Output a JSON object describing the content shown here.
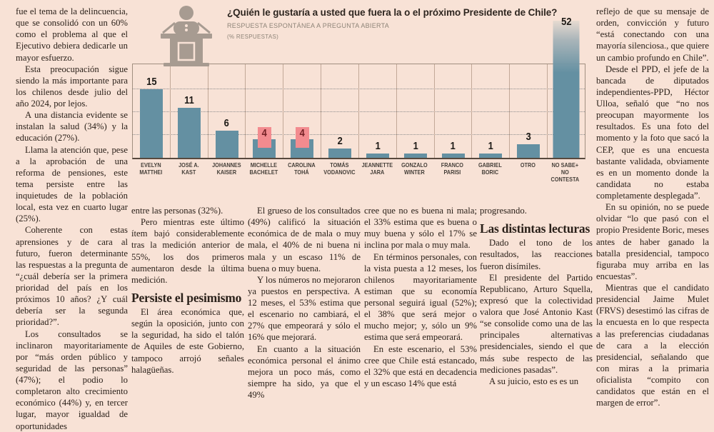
{
  "page": {
    "background_color": "#f8e2d6",
    "text_color": "#2b211a"
  },
  "chart_data": {
    "type": "bar",
    "title": "¿Quién le gustaría a usted que fuera la o el próximo Presidente de Chile?",
    "subtitle": "RESPUESTA ESPONTÁNEA A PREGUNTA ABIERTA",
    "unit_label": "(% RESPUESTAS)",
    "categories": [
      "EVELYN MATTHEI",
      "JOSÉ A. KAST",
      "JOHANNES KAISER",
      "MICHELLE BACHELET",
      "CAROLINA TOHÁ",
      "TOMÁS VODANOVIC",
      "JEANNETTE JARA",
      "GONZALO WINTER",
      "FRANCO PARISI",
      "GABRIEL BORIC",
      "OTRO",
      "NO SABE+ NO CONTESTA"
    ],
    "values": [
      15,
      11,
      6,
      4,
      4,
      2,
      1,
      1,
      1,
      1,
      3,
      52
    ],
    "label_lines": [
      [
        "EVELYN",
        "MATTHEI"
      ],
      [
        "JOSÉ A.",
        "KAST"
      ],
      [
        "JOHANNES",
        "KAISER"
      ],
      [
        "MICHELLE",
        "BACHELET"
      ],
      [
        "CAROLINA",
        "TOHÁ"
      ],
      [
        "TOMÁS",
        "VODANOVIC"
      ],
      [
        "JEANNETTE",
        "JARA"
      ],
      [
        "GONZALO",
        "WINTER"
      ],
      [
        "FRANCO",
        "PARISI"
      ],
      [
        "GABRIEL",
        "BORIC"
      ],
      [
        "OTRO"
      ],
      [
        "NO SABE+",
        "NO CONTESTA"
      ]
    ],
    "highlighted_indices": [
      3,
      4
    ],
    "overflow_index": 11,
    "ylim": [
      0,
      20
    ],
    "gridlines": [
      5,
      10,
      15
    ],
    "grid_on": true,
    "legend": "none",
    "bar_color": "#6490a2",
    "highlight_box_color": "#f28b8f",
    "highlight_text_color": "#742125"
  },
  "article": {
    "columns": [
      {
        "blocks": [
          {
            "type": "p",
            "noindent": true,
            "text": "fue el tema de la delincuencia, que se consolidó con un 60% como el problema al que el Ejecutivo debiera dedicarle un mayor esfuerzo."
          },
          {
            "type": "p",
            "text": "Esta preocupación sigue siendo la más importante para los chilenos desde julio del año 2024, por lejos."
          },
          {
            "type": "p",
            "text": "A una distancia evidente se instalan la salud (34%) y la educación (27%)."
          },
          {
            "type": "p",
            "text": "Llama la atención que, pese a la aprobación de una reforma de pensiones, este tema persiste entre las inquietudes de la población local, esta vez en cuarto lugar (25%)."
          },
          {
            "type": "p",
            "text": "Coherente con estas aprensiones y de cara al futuro, fueron determinante las respuestas a la pregunta de “¿cuál debería ser la primera prioridad del país en los próximos 10 años? ¿Y cuál debería ser la segunda prioridad?”."
          },
          {
            "type": "p",
            "text": "Los consultados se inclinaron mayoritariamente por “más orden público y seguridad de las personas” (47%); el podio lo completaron alto crecimiento económico (44%) y, en tercer lugar, mayor igualdad de oportunidades"
          }
        ]
      },
      {
        "blocks": [
          {
            "type": "p",
            "noindent": true,
            "text": "entre las personas (32%)."
          },
          {
            "type": "p",
            "text": "Pero mientras este último ítem bajó considerablemente tras la medición anterior de 55%, los dos primeros aumentaron desde la última medición."
          },
          {
            "type": "h",
            "text": "Persiste el pesimismo"
          },
          {
            "type": "p",
            "text": "El área económica que, según la oposición, junto con la seguridad, ha sido el talón de Aquiles de este Gobierno, tampoco arrojó señales halagüeñas."
          }
        ]
      },
      {
        "blocks": [
          {
            "type": "p",
            "text": "El grueso de los consultados (49%) calificó la situación económica de de mala o muy mala, el 40% de ni buena ni mala y un escaso 11% de buena o muy buena."
          },
          {
            "type": "p",
            "text": "Y los números no mejoraron ya puestos en perspectiva. A 12 meses, el 53% estima que el escenario no cambiará, el 27% que empeorará y sólo el 16% que mejorará."
          },
          {
            "type": "p",
            "text": "En cuanto a la situación económica personal el ánimo mejora un poco más, como siempre ha sido, ya que el 49%"
          }
        ]
      },
      {
        "blocks": [
          {
            "type": "p",
            "noindent": true,
            "text": "cree que no es buena ni mala; el 33% estima que es buena o muy buena y sólo el 17% se inclina por mala o muy mala."
          },
          {
            "type": "p",
            "text": "En términos personales, con la vista puesta a 12 meses, los chilenos mayoritariamente estiman que su economía personal seguirá igual (52%); el 38% que será mejor o mucho mejor; y, sólo un 9% estima que será empeorará."
          },
          {
            "type": "p",
            "text": "En este escenario, el 53% cree que Chile está estancado, el 32% que está en decadencia y un escaso 14% que está"
          }
        ]
      },
      {
        "blocks": [
          {
            "type": "p",
            "noindent": true,
            "text": "progresando."
          },
          {
            "type": "h",
            "text": "Las distintas lecturas"
          },
          {
            "type": "p",
            "text": "Dado el tono de los resultados, las reacciones fueron disímiles."
          },
          {
            "type": "p",
            "text": "El presidente del Partido Republicano, Arturo Squella, expresó que la colectividad valora que José Antonio Kast “se consolide como una de las principales alternativas presidenciales, siendo el que más sube respecto de las mediciones pasadas”."
          },
          {
            "type": "p",
            "text": "A su juicio, esto es es un"
          }
        ]
      },
      {
        "blocks": [
          {
            "type": "p",
            "noindent": true,
            "text": "reflejo de que su mensaje de orden, convicción y futuro “está conectando con una mayoría silenciosa., que quiere un cambio profundo en Chile”."
          },
          {
            "type": "p",
            "text": "Desde el PPD, el jefe de la bancada de diputados independientes-PPD, Héctor Ulloa, señaló que “no nos preocupan mayormente los resultados. Es una foto del momento y la foto que sacó la CEP, que es una encuesta bastante validada, obviamente es en un momento donde la candidata no estaba completamente desplegada”."
          },
          {
            "type": "p",
            "text": "En su opinión, no se puede olvidar “lo que pasó con el propio Presidente Boric, meses antes de haber ganado la batalla presidencial, tampoco figuraba muy arriba en las encuestas”."
          },
          {
            "type": "p",
            "text": "Mientras que el candidato presidencial Jaime Mulet (FRVS) desestimó las cifras de la encuesta en lo que respecta a las preferencias ciudadanas de cara a la elección presidencial, señalando que con miras a la primaria oficialista “compito con candidatos que están en el margen de error”."
          }
        ]
      }
    ]
  }
}
